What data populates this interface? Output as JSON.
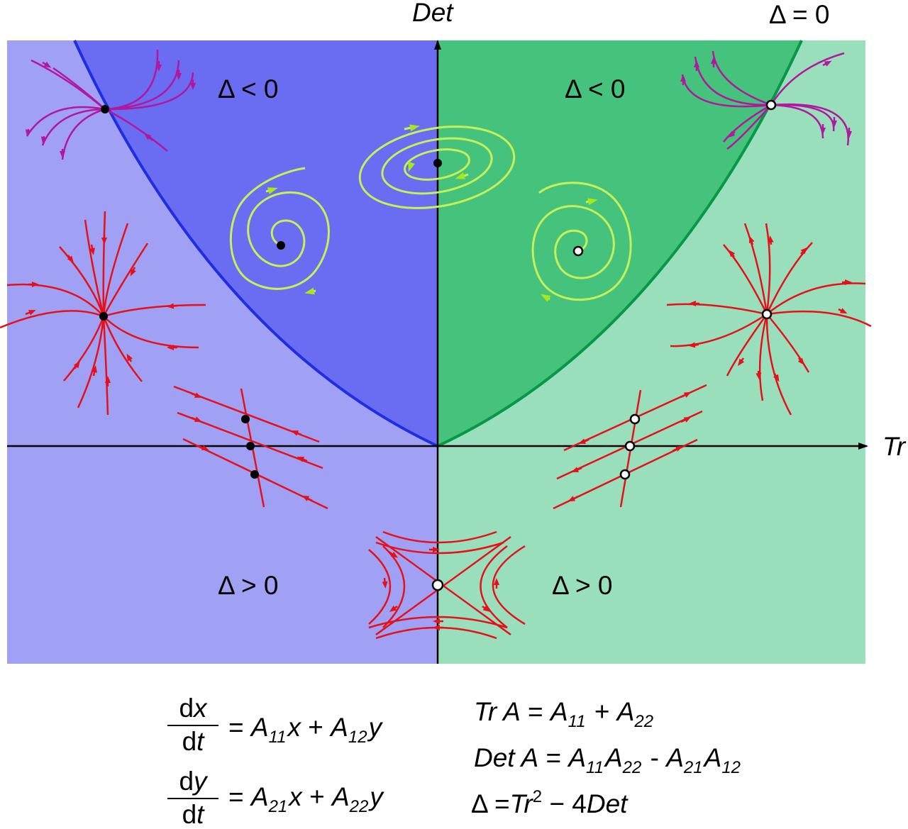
{
  "labels": {
    "det_axis": "Det",
    "tr_axis": "Tr",
    "parabola": "Δ = 0",
    "delta_neg_left": "Δ < 0",
    "delta_neg_right": "Δ < 0",
    "delta_pos_left": "Δ > 0",
    "delta_pos_right": "Δ > 0"
  },
  "equations": {
    "eq1_d": "d",
    "eq1_var": "x",
    "eq1_dt": "d",
    "eq1_t": "t",
    "eq1_eq": "=",
    "eq1_A1": "A",
    "eq1_s1": "11",
    "eq1_x": "x",
    "eq1_plus": "+",
    "eq1_A2": "A",
    "eq1_s2": "12",
    "eq1_y": "y",
    "eq2_d": "d",
    "eq2_var": "y",
    "eq2_dt": "d",
    "eq2_t": "t",
    "eq2_eq": "=",
    "eq2_A1": "A",
    "eq2_s1": "21",
    "eq2_x": "x",
    "eq2_plus": "+",
    "eq2_A2": "A",
    "eq2_s2": "22",
    "eq2_y": "y",
    "tr_lhs": "Tr A",
    "tr_eq": "=",
    "tr_A1": "A",
    "tr_s1": "11",
    "tr_plus": "+",
    "tr_A2": "A",
    "tr_s2": "22",
    "det_lhs": "Det A",
    "det_eq": "=",
    "det_A1": "A",
    "det_s1": "11",
    "det_A2": "A",
    "det_s2": "22",
    "det_minus": "-",
    "det_A3": "A",
    "det_s3": "21",
    "det_A4": "A",
    "det_s4": "12",
    "disc_lhs": "Δ",
    "disc_eq": "=",
    "disc_tr": "Tr",
    "disc_pow": "2",
    "disc_rest_op": "− 4",
    "disc_det": "Det"
  },
  "colors": {
    "left_light": "#a0a0f4",
    "left_dark": "#6a6cf1",
    "right_light": "#9adfbb",
    "right_dark": "#45c37c",
    "parabola_left": "#1f2ee0",
    "parabola_right": "#079847",
    "trajectory_red": "#e5101a",
    "trajectory_magenta": "#b0189f",
    "spiral_green": "#c6f05a"
  }
}
